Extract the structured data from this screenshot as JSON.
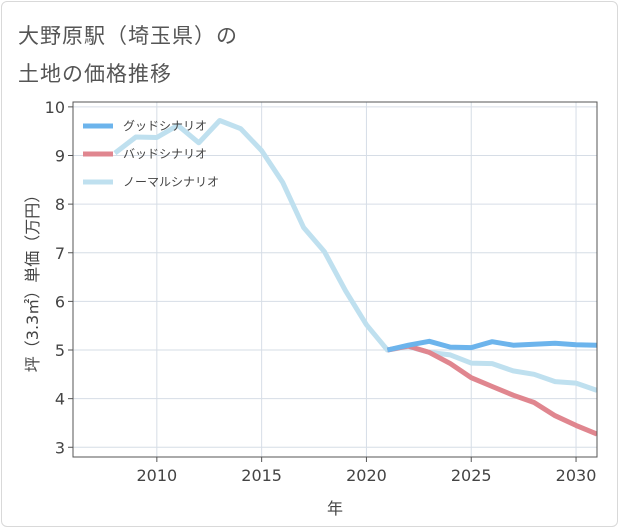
{
  "title_lines": [
    "大野原駅（埼玉県）の",
    "土地の価格推移"
  ],
  "colors": {
    "good": "#6cb4ec",
    "bad": "#e0868f",
    "normal": "#bfe0ef",
    "grid": "#d6dde6",
    "axis": "#555555",
    "text": "#444444"
  },
  "chart_data": {
    "type": "line",
    "xlabel": "年",
    "ylabel": "坪（3.3㎡）単価（万円）",
    "xlim": [
      2006,
      2031
    ],
    "ylim": [
      2.8,
      10.1
    ],
    "xticks": [
      2010,
      2015,
      2020,
      2025,
      2030
    ],
    "yticks": [
      3,
      4,
      5,
      6,
      7,
      8,
      9,
      10
    ],
    "grid": true,
    "legend_position": "top-left",
    "series": [
      {
        "name": "グッドシナリオ",
        "color_key": "good",
        "x": [
          2021,
          2022,
          2023,
          2024,
          2025,
          2026,
          2027,
          2028,
          2029,
          2030,
          2031
        ],
        "y": [
          5.0,
          5.1,
          5.18,
          5.06,
          5.05,
          5.17,
          5.1,
          5.12,
          5.14,
          5.11,
          5.1
        ]
      },
      {
        "name": "バッドシナリオ",
        "color_key": "bad",
        "x": [
          2021,
          2022,
          2023,
          2024,
          2025,
          2026,
          2027,
          2028,
          2029,
          2030,
          2031
        ],
        "y": [
          5.0,
          5.08,
          4.95,
          4.72,
          4.43,
          4.25,
          4.07,
          3.92,
          3.65,
          3.45,
          3.27
        ]
      },
      {
        "name": "ノーマルシナリオ",
        "color_key": "normal",
        "x": [
          2008,
          2009,
          2010,
          2011,
          2012,
          2013,
          2014,
          2015,
          2016,
          2017,
          2018,
          2019,
          2020,
          2021,
          2022,
          2023,
          2024,
          2025,
          2026,
          2027,
          2028,
          2029,
          2030,
          2031
        ],
        "y": [
          9.05,
          9.38,
          9.37,
          9.62,
          9.26,
          9.72,
          9.55,
          9.1,
          8.45,
          7.52,
          7.02,
          6.22,
          5.52,
          5.0,
          5.07,
          4.95,
          4.9,
          4.73,
          4.72,
          4.57,
          4.5,
          4.35,
          4.32,
          4.17
        ]
      }
    ]
  }
}
